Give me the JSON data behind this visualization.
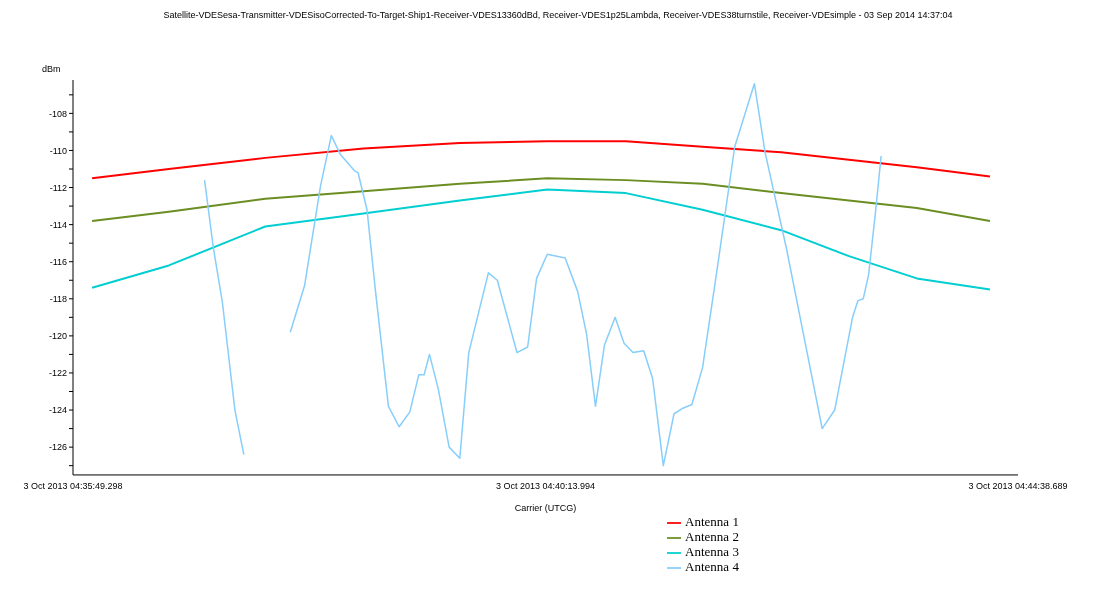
{
  "chart_data": {
    "type": "line",
    "title": "Satellite-VDESesa-Transmitter-VDESisoCorrected-To-Target-Ship1-Receiver-VDES13360dBd, Receiver-VDES1p25Lambda, Receiver-VDES38turnstile, Receiver-VDEsimple - 03 Sep 2014 14:37:04",
    "xlabel": "Carrier (UTCG)",
    "ylabel": "dBm",
    "legend": "bottom",
    "xlim": [
      "2013-10-03T04:35:49.298",
      "2013-10-03T04:44:38.689"
    ],
    "xticks": [
      {
        "value": "2013-10-03T04:35:49.298",
        "label": "3 Oct 2013 04:35:49.298"
      },
      {
        "value": "2013-10-03T04:40:13.994",
        "label": "3 Oct 2013 04:40:13.994"
      },
      {
        "value": "2013-10-03T04:44:38.689",
        "label": "3 Oct 2013 04:44:38.689"
      }
    ],
    "ylim": [
      -127.5,
      -106.2
    ],
    "yticks": [
      {
        "value": -127,
        "label": null
      },
      -126,
      {
        "value": -125,
        "label": null
      },
      -124,
      {
        "value": -123,
        "label": null
      },
      -122,
      {
        "value": -121,
        "label": null
      },
      -120,
      {
        "value": -119,
        "label": null
      },
      -118,
      {
        "value": -117,
        "label": null
      },
      -116,
      {
        "value": -115,
        "label": null
      },
      -114,
      {
        "value": -113,
        "label": null
      },
      -112,
      {
        "value": -111,
        "label": null
      },
      -110,
      {
        "value": -109,
        "label": null
      },
      -108,
      {
        "value": -107,
        "label": null
      }
    ],
    "x": [
      "2013-10-03T04:36:00",
      "2013-10-03T04:36:43",
      "2013-10-03T04:37:37",
      "2013-10-03T04:38:32",
      "2013-10-03T04:39:26",
      "2013-10-03T04:40:15",
      "2013-10-03T04:40:59",
      "2013-10-03T04:41:42",
      "2013-10-03T04:42:26",
      "2013-10-03T04:43:04",
      "2013-10-03T04:43:42",
      "2013-10-03T04:44:23"
    ],
    "series": [
      {
        "name": "Antenna 1",
        "color": "#ff0000",
        "values": [
          -111.5,
          -111.0,
          -110.4,
          -109.9,
          -109.6,
          -109.5,
          -109.5,
          -109.8,
          -110.1,
          -110.5,
          -110.9,
          -111.4
        ]
      },
      {
        "name": "Antenna 2",
        "color": "#6b8e23",
        "values": [
          -113.8,
          -113.3,
          -112.6,
          -112.2,
          -111.8,
          -111.5,
          -111.6,
          -111.8,
          -112.3,
          -112.7,
          -113.1,
          -113.8
        ]
      },
      {
        "name": "Antenna 3",
        "color": "#00ced1",
        "values": [
          -117.4,
          -116.2,
          -114.1,
          -113.4,
          -112.7,
          -112.1,
          -112.3,
          -113.2,
          -114.3,
          -115.7,
          -116.9,
          -117.5
        ]
      },
      {
        "name": "Antenna 4",
        "color": "#87cefa",
        "x": [
          "2013-10-03T04:37:03",
          "2013-10-03T04:37:08",
          "2013-10-03T04:37:13",
          "2013-10-03T04:37:20",
          "2013-10-03T04:37:25",
          "2013-10-03T04:37:27",
          "2013-10-03T04:37:43",
          "2013-10-03T04:37:51",
          "2013-10-03T04:37:59",
          "2013-10-03T04:38:08",
          "2013-10-03T04:38:14",
          "2013-10-03T04:38:19",
          "2013-10-03T04:38:27",
          "2013-10-03T04:38:29",
          "2013-10-03T04:38:34",
          "2013-10-03T04:38:39",
          "2013-10-03T04:38:46",
          "2013-10-03T04:38:52",
          "2013-10-03T04:38:58",
          "2013-10-03T04:39:03",
          "2013-10-03T04:39:06",
          "2013-10-03T04:39:09",
          "2013-10-03T04:39:14",
          "2013-10-03T04:39:20",
          "2013-10-03T04:39:26",
          "2013-10-03T04:39:31",
          "2013-10-03T04:39:42",
          "2013-10-03T04:39:47",
          "2013-10-03T04:39:58",
          "2013-10-03T04:40:04",
          "2013-10-03T04:40:09",
          "2013-10-03T04:40:15",
          "2013-10-03T04:40:25",
          "2013-10-03T04:40:32",
          "2013-10-03T04:40:37",
          "2013-10-03T04:40:42",
          "2013-10-03T04:40:47",
          "2013-10-03T04:40:53",
          "2013-10-03T04:40:58",
          "2013-10-03T04:41:03",
          "2013-10-03T04:41:09",
          "2013-10-03T04:41:14",
          "2013-10-03T04:41:20",
          "2013-10-03T04:41:26",
          "2013-10-03T04:41:31",
          "2013-10-03T04:41:36",
          "2013-10-03T04:41:42",
          "2013-10-03T04:41:50",
          "2013-10-03T04:42:00",
          "2013-10-03T04:42:11",
          "2013-10-03T04:42:17",
          "2013-10-03T04:42:29",
          "2013-10-03T04:42:49",
          "2013-10-03T04:42:56",
          "2013-10-03T04:43:06",
          "2013-10-03T04:43:09",
          "2013-10-03T04:43:12",
          "2013-10-03T04:43:15",
          "2013-10-03T04:43:19",
          "2013-10-03T04:43:22"
        ],
        "values": [
          -111.6,
          -115.3,
          -118.2,
          -124.0,
          -126.4,
          null,
          null,
          -119.8,
          -117.3,
          -111.9,
          -109.2,
          -110.2,
          -111.1,
          -111.2,
          -113.2,
          -117.8,
          -123.8,
          -124.9,
          -124.1,
          -122.1,
          -122.1,
          -121.0,
          -122.9,
          -126.0,
          -126.6,
          -120.9,
          -116.6,
          -117.0,
          -120.9,
          -120.6,
          -116.9,
          -115.6,
          -115.8,
          -117.6,
          -119.9,
          -123.8,
          -120.5,
          -119.0,
          -120.4,
          -120.9,
          -120.8,
          -122.3,
          -127.0,
          -124.2,
          -123.9,
          -123.7,
          -121.7,
          -116.5,
          -109.8,
          -106.4,
          -110.1,
          -115.3,
          -125.0,
          -124.0,
          -119.0,
          -118.1,
          -118.0,
          -116.7,
          -113.2,
          -110.3
        ]
      }
    ]
  }
}
